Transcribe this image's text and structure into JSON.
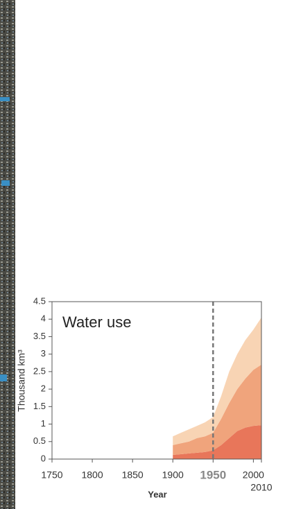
{
  "chart_data": {
    "type": "stacked_area",
    "title": "Water use",
    "x_label": "Year",
    "y_label": "Thousand km³",
    "x": [
      1900,
      1910,
      1920,
      1930,
      1940,
      1950,
      1960,
      1970,
      1980,
      1990,
      2000,
      2010
    ],
    "series": [
      {
        "color": "#e8765a",
        "values": [
          0.12,
          0.14,
          0.16,
          0.18,
          0.2,
          0.25,
          0.4,
          0.6,
          0.8,
          0.9,
          0.95,
          0.97
        ]
      },
      {
        "color": "#f0a47c",
        "values": [
          0.28,
          0.31,
          0.34,
          0.42,
          0.45,
          0.5,
          0.75,
          1.0,
          1.2,
          1.4,
          1.6,
          1.73
        ]
      },
      {
        "color": "#f8d4b4",
        "values": [
          0.25,
          0.3,
          0.35,
          0.35,
          0.4,
          0.45,
          0.65,
          0.9,
          1.0,
          1.1,
          1.15,
          1.35
        ]
      }
    ],
    "xlim": [
      1750,
      2010
    ],
    "ylim": [
      0,
      4.5
    ],
    "xticks": [
      1750,
      1800,
      1850,
      1900,
      1950,
      2000,
      2010
    ],
    "yticks": [
      0,
      0.5,
      1,
      1.5,
      2,
      2.5,
      3,
      3.5,
      4,
      4.5
    ],
    "highlight_x": 1950
  }
}
